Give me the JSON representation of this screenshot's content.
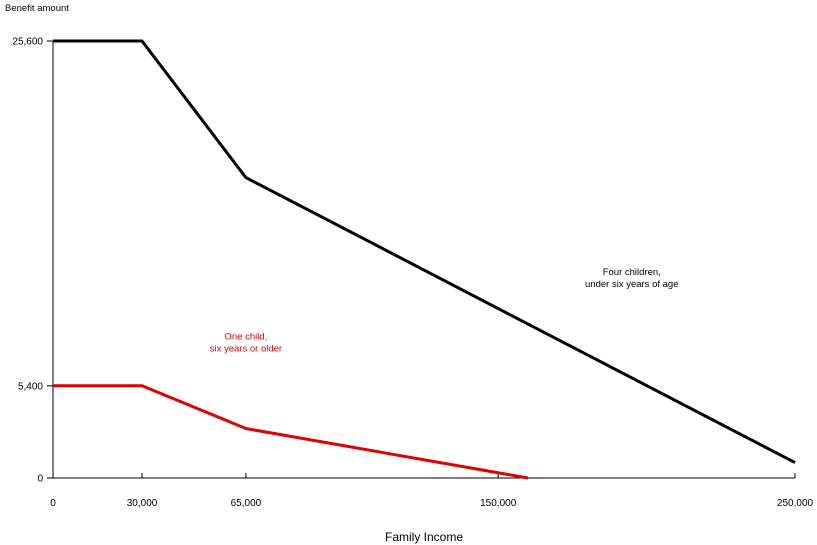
{
  "chart_data": {
    "type": "line",
    "xlabel": "Family Income",
    "ylabel": "Benefit amount",
    "xlim": [
      0,
      250000
    ],
    "ylim": [
      0,
      25600
    ],
    "x_ticks": [
      {
        "value": 0,
        "label": "0"
      },
      {
        "value": 30000,
        "label": "30,000"
      },
      {
        "value": 65000,
        "label": "65,000"
      },
      {
        "value": 150000,
        "label": "150,000"
      },
      {
        "value": 250000,
        "label": "250,000"
      }
    ],
    "y_ticks": [
      {
        "value": 0,
        "label": "0"
      },
      {
        "value": 5400,
        "label": "5,400"
      },
      {
        "value": 25600,
        "label": "25,600"
      }
    ],
    "grid": false,
    "series": [
      {
        "color": "#000000",
        "points": [
          [
            0,
            25600
          ],
          [
            30000,
            25600
          ],
          [
            65000,
            17600
          ],
          [
            250000,
            900
          ]
        ]
      },
      {
        "color": "#e00000",
        "points": [
          [
            0,
            5400
          ],
          [
            30000,
            5400
          ],
          [
            65000,
            2900
          ],
          [
            160000,
            0
          ]
        ]
      }
    ],
    "annotations": [
      {
        "lines": [
          "Four children,",
          "under six years of age"
        ],
        "x": 195000,
        "y": 11900,
        "color": "#000000"
      },
      {
        "lines": [
          "One child,",
          "six years or older"
        ],
        "x": 65000,
        "y": 8100,
        "color": "#e00000"
      }
    ]
  }
}
